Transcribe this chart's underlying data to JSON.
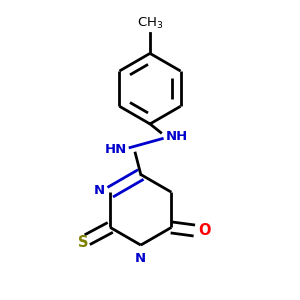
{
  "bg_color": "#ffffff",
  "bond_color": "#000000",
  "n_color": "#0000cc",
  "o_color": "#ff0000",
  "s_color": "#808000",
  "line_width": 2.0,
  "dbo": 0.018,
  "figsize": [
    3.0,
    3.0
  ],
  "dpi": 100,
  "xlim": [
    0.1,
    0.9
  ],
  "ylim": [
    0.02,
    0.98
  ]
}
